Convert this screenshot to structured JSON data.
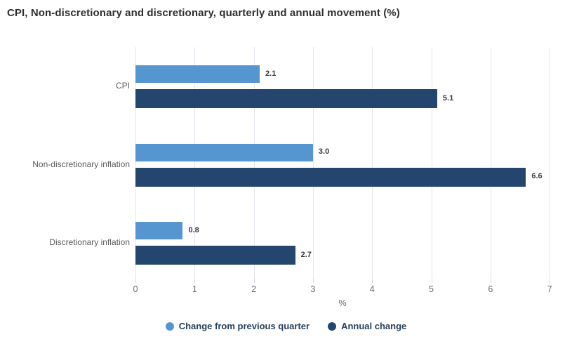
{
  "title": "CPI, Non-discretionary and discretionary, quarterly and annual movement (%)",
  "chart_data": {
    "type": "bar",
    "orientation": "horizontal",
    "title": "CPI, Non-discretionary and discretionary, quarterly and annual movement (%)",
    "categories": [
      "CPI",
      "Non-discretionary inflation",
      "Discretionary inflation"
    ],
    "series": [
      {
        "name": "Change from previous quarter",
        "color": "#5596D0",
        "values": [
          2.1,
          3.0,
          0.8
        ],
        "labels": [
          "2.1",
          "3.0",
          "0.8"
        ]
      },
      {
        "name": "Annual change",
        "color": "#24466E",
        "values": [
          5.1,
          6.6,
          2.7
        ],
        "labels": [
          "5.1",
          "6.6",
          "2.7"
        ]
      }
    ],
    "xlabel": "%",
    "ylabel": "",
    "xlim": [
      0,
      7
    ],
    "xticks": [
      "0",
      "1",
      "2",
      "3",
      "4",
      "5",
      "6",
      "7"
    ],
    "grid": true,
    "legend_position": "bottom"
  },
  "colors": {
    "quarterly_series": "#5596D0",
    "annual_series": "#24466E",
    "gridline": "#e3e6ef",
    "axis_text": "#6a6a6a",
    "category_text": "#5b5b5b",
    "value_label_text": "#3a3a3a",
    "legend_text": "#25415c",
    "title_text": "#2f2f33"
  }
}
